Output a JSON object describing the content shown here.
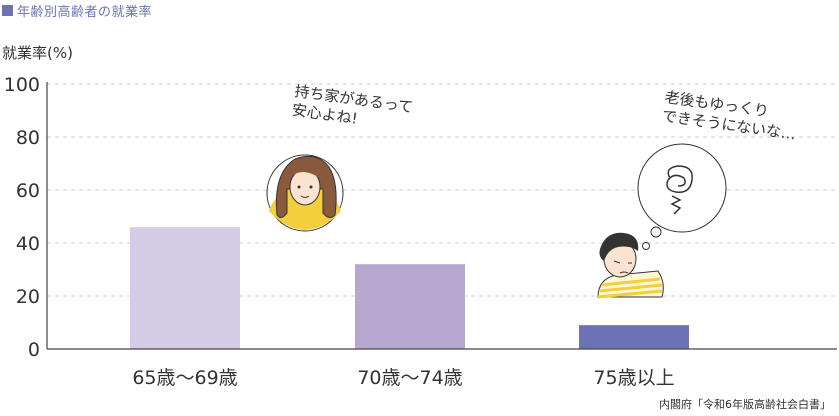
{
  "header": {
    "title": "年齢別高齢者の就業率",
    "marker_color": "#6b73b5"
  },
  "source": "内閣府「令和6年版高齢社会白書」",
  "speech": {
    "woman": [
      "持ち家があるって",
      "安心よね!"
    ],
    "man": [
      "老後もゆっくり",
      "できそうにないな…"
    ]
  },
  "chart_data": {
    "type": "bar",
    "title": "",
    "ylabel": "就業率(%)",
    "xlabel": "",
    "categories": [
      "65歳〜69歳",
      "70歳〜74歳",
      "75歳以上"
    ],
    "values": [
      46,
      32,
      9
    ],
    "colors": [
      "#d5cde6",
      "#b6a8cf",
      "#6b73b5"
    ],
    "ylim": [
      0,
      100
    ],
    "yticks": [
      0,
      20,
      40,
      60,
      80,
      100
    ],
    "grid": true
  }
}
